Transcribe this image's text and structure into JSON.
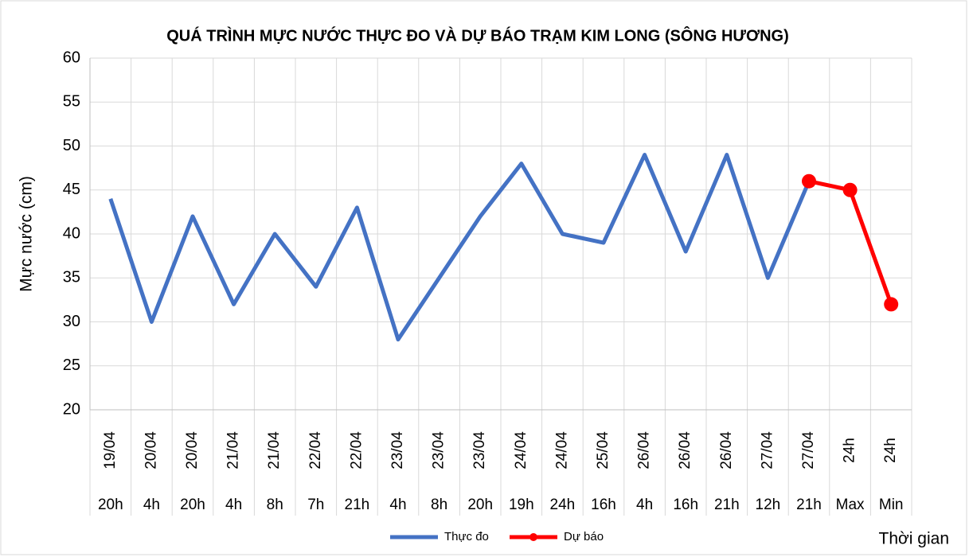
{
  "chart_data": {
    "type": "line",
    "title": "QUÁ TRÌNH MỰC NƯỚC THỰC ĐO VÀ DỰ BÁO TRẠM KIM LONG (SÔNG HƯƠNG)",
    "y_label": "Mực nước (cm)",
    "x_label": "Thời gian",
    "categories": [
      "19/04",
      "20/04",
      "20/04",
      "21/04",
      "21/04",
      "22/04",
      "22/04",
      "23/04",
      "23/04",
      "23/04",
      "24/04",
      "24/04",
      "25/04",
      "26/04",
      "26/04",
      "26/04",
      "27/04",
      "27/04",
      "24h",
      "24h"
    ],
    "subcategories": [
      "20h",
      "4h",
      "20h",
      "4h",
      "8h",
      "7h",
      "21h",
      "4h",
      "8h",
      "20h",
      "19h",
      "24h",
      "16h",
      "4h",
      "16h",
      "21h",
      "12h",
      "21h",
      "Max",
      "Min"
    ],
    "series": [
      {
        "name": "Thực đo",
        "color": "#4472c4",
        "marker": false,
        "values": [
          44,
          30,
          42,
          32,
          40,
          34,
          43,
          28,
          35,
          42,
          48,
          40,
          39,
          49,
          38,
          49,
          35,
          46,
          null,
          null
        ]
      },
      {
        "name": "Dự báo",
        "color": "#ff0000",
        "marker": true,
        "values": [
          null,
          null,
          null,
          null,
          null,
          null,
          null,
          null,
          null,
          null,
          null,
          null,
          null,
          null,
          null,
          null,
          null,
          46,
          45,
          32
        ]
      }
    ],
    "ylim": [
      20,
      60
    ],
    "yticks": [
      20,
      25,
      30,
      35,
      40,
      45,
      50,
      55,
      60
    ],
    "grid": true,
    "legend": "bottom"
  }
}
